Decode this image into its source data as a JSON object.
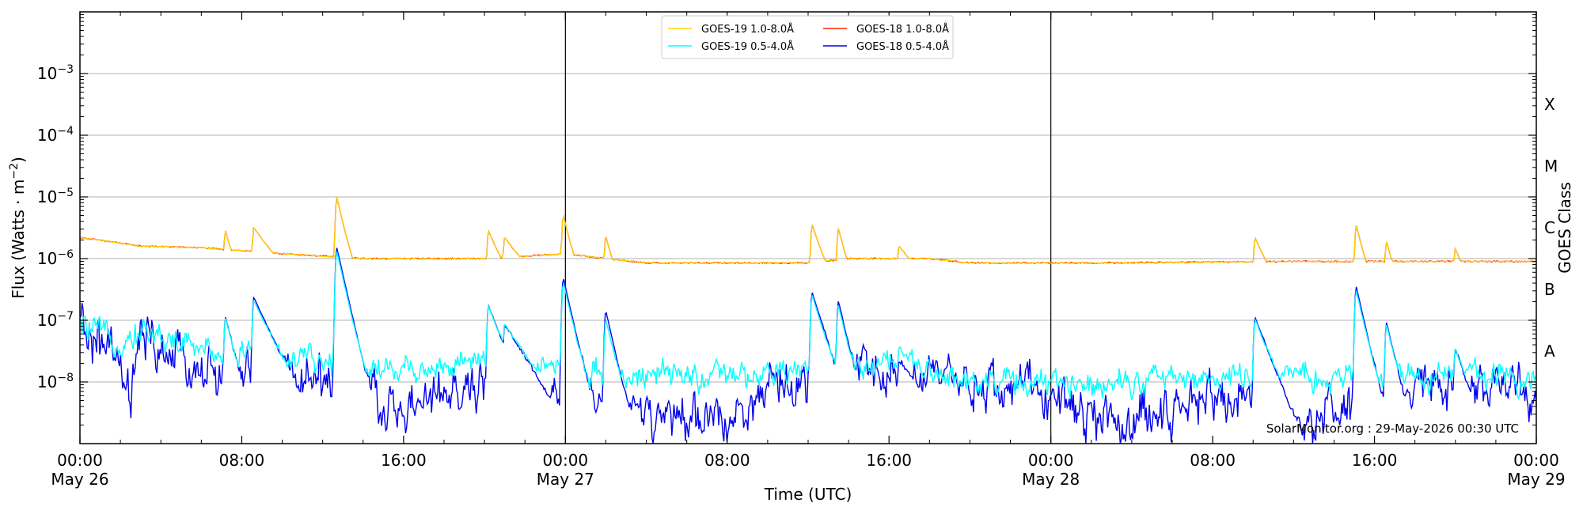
{
  "chart_data": {
    "type": "line",
    "title": "",
    "xlabel": "Time (UTC)",
    "ylabel": "Flux (Watts · m",
    "ylabel_sup": "−2",
    "ylabel_close": ")",
    "y2label": "GOES Class",
    "yscale": "log",
    "ylim": [
      1e-09,
      0.01
    ],
    "xlim_hours": [
      0,
      72
    ],
    "grid": "horizontal",
    "legend_position": "top-center",
    "credit": "SolarMonitor.org : 29-May-2026 00:30 UTC",
    "y_ticks": [
      {
        "value": 1e-08,
        "base": "10",
        "exp": "−8"
      },
      {
        "value": 1e-07,
        "base": "10",
        "exp": "−7"
      },
      {
        "value": 1e-06,
        "base": "10",
        "exp": "−6"
      },
      {
        "value": 1e-05,
        "base": "10",
        "exp": "−5"
      },
      {
        "value": 0.0001,
        "base": "10",
        "exp": "−4"
      },
      {
        "value": 0.001,
        "base": "10",
        "exp": "−3"
      }
    ],
    "goes_classes": [
      {
        "label": "A",
        "value": 3.16e-08
      },
      {
        "label": "B",
        "value": 3.16e-07
      },
      {
        "label": "C",
        "value": 3.16e-06
      },
      {
        "label": "M",
        "value": 3.16e-05
      },
      {
        "label": "X",
        "value": 0.000316
      }
    ],
    "x_ticks": [
      {
        "hour": 0,
        "time": "00:00",
        "date": "May 26"
      },
      {
        "hour": 8,
        "time": "08:00",
        "date": ""
      },
      {
        "hour": 16,
        "time": "16:00",
        "date": ""
      },
      {
        "hour": 24,
        "time": "00:00",
        "date": "May 27"
      },
      {
        "hour": 32,
        "time": "08:00",
        "date": ""
      },
      {
        "hour": 40,
        "time": "16:00",
        "date": ""
      },
      {
        "hour": 48,
        "time": "00:00",
        "date": "May 28"
      },
      {
        "hour": 56,
        "time": "08:00",
        "date": ""
      },
      {
        "hour": 64,
        "time": "16:00",
        "date": ""
      },
      {
        "hour": 72,
        "time": "00:00",
        "date": "May 29"
      }
    ],
    "day_boundaries_hours": [
      24,
      48
    ],
    "series": [
      {
        "name": "GOES-19 1.0-8.0Å",
        "color": "#ffd700",
        "baseline": [
          [
            0,
            2.2e-06
          ],
          [
            3,
            1.6e-06
          ],
          [
            6,
            1.5e-06
          ],
          [
            10,
            1.2e-06
          ],
          [
            12,
            1.1e-06
          ],
          [
            14,
            1e-06
          ],
          [
            20,
            1e-06
          ],
          [
            24,
            1.2e-06
          ],
          [
            26,
            1e-06
          ],
          [
            28,
            8.5e-07
          ],
          [
            36,
            8.5e-07
          ],
          [
            38,
            1e-06
          ],
          [
            42,
            1e-06
          ],
          [
            44,
            8.5e-07
          ],
          [
            50,
            8.5e-07
          ],
          [
            60,
            9e-07
          ],
          [
            72,
            9e-07
          ]
        ],
        "peaks": [
          [
            7.2,
            2.4e-06,
            0.3
          ],
          [
            8.6,
            2.8e-06,
            0.8
          ],
          [
            12.7,
            9.5e-06,
            0.3
          ],
          [
            20.2,
            2.5e-06,
            0.5
          ],
          [
            21.0,
            1.9e-06,
            0.8
          ],
          [
            23.9,
            4.6e-06,
            0.3
          ],
          [
            26.0,
            2e-06,
            0.3
          ],
          [
            36.2,
            3.3e-06,
            0.4
          ],
          [
            37.5,
            2.8e-06,
            0.3
          ],
          [
            40.5,
            1.3e-06,
            0.8
          ],
          [
            58.1,
            1.9e-06,
            0.5
          ],
          [
            63.1,
            3.2e-06,
            0.3
          ],
          [
            64.6,
            1.6e-06,
            0.3
          ],
          [
            68.0,
            1.2e-06,
            0.4
          ]
        ]
      },
      {
        "name": "GOES-18 1.0-8.0Å",
        "color": "#ff2200",
        "baseline": [
          [
            0,
            2.2e-06
          ],
          [
            3,
            1.6e-06
          ],
          [
            6,
            1.5e-06
          ],
          [
            10,
            1.2e-06
          ],
          [
            12,
            1.1e-06
          ],
          [
            14,
            1e-06
          ],
          [
            20,
            1e-06
          ],
          [
            24,
            1.2e-06
          ],
          [
            26,
            1e-06
          ],
          [
            28,
            8.5e-07
          ],
          [
            36,
            8.5e-07
          ],
          [
            38,
            1e-06
          ],
          [
            42,
            1e-06
          ],
          [
            44,
            8.5e-07
          ],
          [
            50,
            8.5e-07
          ],
          [
            60,
            9e-07
          ],
          [
            72,
            9e-07
          ]
        ],
        "peaks": [
          [
            7.2,
            2.4e-06,
            0.3
          ],
          [
            8.6,
            2.8e-06,
            0.8
          ],
          [
            12.7,
            9.5e-06,
            0.3
          ],
          [
            20.2,
            2.5e-06,
            0.5
          ],
          [
            21.0,
            1.9e-06,
            0.8
          ],
          [
            23.9,
            4.6e-06,
            0.3
          ],
          [
            26.0,
            2e-06,
            0.3
          ],
          [
            36.2,
            3.3e-06,
            0.4
          ],
          [
            37.5,
            2.8e-06,
            0.3
          ],
          [
            40.5,
            1.3e-06,
            0.8
          ],
          [
            58.1,
            1.9e-06,
            0.5
          ],
          [
            63.1,
            3.2e-06,
            0.3
          ],
          [
            64.6,
            1.6e-06,
            0.3
          ],
          [
            68.0,
            1.2e-06,
            0.4
          ]
        ]
      },
      {
        "name": "GOES-19 0.5-4.0Å",
        "color": "#00ffff",
        "baseline": [
          [
            0,
            8e-08
          ],
          [
            2,
            4.5e-08
          ],
          [
            3,
            7e-08
          ],
          [
            5,
            4e-08
          ],
          [
            7,
            3e-08
          ],
          [
            10,
            2.5e-08
          ],
          [
            12,
            2e-08
          ],
          [
            16,
            1.6e-08
          ],
          [
            20,
            2e-08
          ],
          [
            22,
            2e-08
          ],
          [
            24,
            2e-08
          ],
          [
            26,
            1.3e-08
          ],
          [
            30,
            1.2e-08
          ],
          [
            34,
            1.2e-08
          ],
          [
            36,
            1.6e-08
          ],
          [
            38,
            1.8e-08
          ],
          [
            40,
            2.2e-08
          ],
          [
            42,
            1.3e-08
          ],
          [
            46,
            1e-08
          ],
          [
            48,
            9e-09
          ],
          [
            52,
            1.1e-08
          ],
          [
            58,
            1.2e-08
          ],
          [
            62,
            1.1e-08
          ],
          [
            66,
            1.2e-08
          ],
          [
            70,
            1.4e-08
          ],
          [
            72,
            1.1e-08
          ]
        ],
        "noise": 0.18,
        "peaks": [
          [
            7.2,
            1e-07,
            0.3
          ],
          [
            8.6,
            2e-07,
            0.6
          ],
          [
            12.7,
            1.3e-06,
            0.3
          ],
          [
            20.2,
            1.6e-07,
            0.5
          ],
          [
            21.0,
            8e-08,
            0.8
          ],
          [
            23.9,
            4e-07,
            0.3
          ],
          [
            26.0,
            1e-07,
            0.3
          ],
          [
            36.2,
            2.5e-07,
            0.4
          ],
          [
            37.5,
            1.7e-07,
            0.3
          ],
          [
            40.5,
            3e-08,
            0.8
          ],
          [
            58.1,
            1e-07,
            0.5
          ],
          [
            63.1,
            3e-07,
            0.3
          ],
          [
            64.6,
            8e-08,
            0.3
          ],
          [
            68.0,
            3e-08,
            0.4
          ]
        ]
      },
      {
        "name": "GOES-18 0.5-4.0Å",
        "color": "#0000ee",
        "baseline": [
          [
            0,
            7e-08
          ],
          [
            1.5,
            3e-08
          ],
          [
            2.5,
            5e-09
          ],
          [
            3,
            5e-08
          ],
          [
            5,
            2e-08
          ],
          [
            7,
            1.2e-08
          ],
          [
            10,
            1.2e-08
          ],
          [
            12,
            1.2e-08
          ],
          [
            14,
            6e-09
          ],
          [
            16,
            3e-09
          ],
          [
            18,
            6e-09
          ],
          [
            20,
            8e-09
          ],
          [
            22,
            1e-08
          ],
          [
            23,
            2e-09
          ],
          [
            24,
            8e-09
          ],
          [
            26,
            5e-09
          ],
          [
            28,
            3e-09
          ],
          [
            30,
            2e-09
          ],
          [
            32,
            3e-09
          ],
          [
            34,
            6e-09
          ],
          [
            36,
            1.2e-08
          ],
          [
            38,
            1.4e-08
          ],
          [
            40,
            1.5e-08
          ],
          [
            42,
            1e-08
          ],
          [
            44,
            8e-09
          ],
          [
            46,
            9e-09
          ],
          [
            48,
            6e-09
          ],
          [
            50,
            3e-09
          ],
          [
            52,
            2e-09
          ],
          [
            54,
            4e-09
          ],
          [
            56,
            6e-09
          ],
          [
            58,
            5e-09
          ],
          [
            60,
            2e-09
          ],
          [
            62,
            3e-09
          ],
          [
            64,
            4e-09
          ],
          [
            66,
            6e-09
          ],
          [
            68,
            8e-09
          ],
          [
            70,
            8e-09
          ],
          [
            72,
            5e-09
          ]
        ],
        "noise": 0.32,
        "peaks": [
          [
            7.2,
            1.1e-07,
            0.3
          ],
          [
            8.6,
            2.3e-07,
            0.6
          ],
          [
            12.7,
            1.5e-06,
            0.3
          ],
          [
            20.2,
            1.7e-07,
            0.5
          ],
          [
            21.0,
            8e-08,
            0.8
          ],
          [
            23.9,
            4.8e-07,
            0.3
          ],
          [
            26.0,
            1.4e-07,
            0.3
          ],
          [
            36.2,
            2.8e-07,
            0.4
          ],
          [
            37.5,
            2e-07,
            0.3
          ],
          [
            40.5,
            2e-08,
            0.8
          ],
          [
            58.1,
            1.1e-07,
            0.5
          ],
          [
            63.1,
            3.5e-07,
            0.3
          ],
          [
            64.6,
            9e-08,
            0.3
          ],
          [
            68.0,
            3.3e-08,
            0.4
          ]
        ]
      }
    ]
  }
}
